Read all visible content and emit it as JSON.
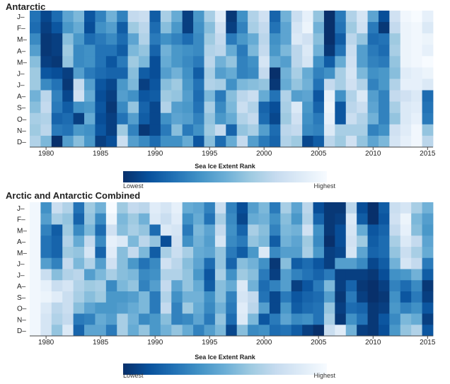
{
  "chart_data": [
    {
      "type": "heatmap",
      "title": "Antarctic",
      "row_labels": [
        "J",
        "F",
        "M",
        "A",
        "M",
        "J",
        "J",
        "A",
        "S",
        "O",
        "N",
        "D"
      ],
      "x_range": [
        1979,
        2015
      ],
      "x_tick_labels": [
        "1980",
        "1985",
        "1990",
        "1995",
        "2000",
        "2005",
        "2010",
        "2015"
      ],
      "x_ticks": [
        1980,
        1985,
        1990,
        1995,
        2000,
        2005,
        2010,
        2015
      ],
      "value_scale": "rank",
      "legend": {
        "title": "Sea Ice Extent Rank",
        "low_label": "Lowest",
        "high_label": "Highest",
        "low_color": "#08306b",
        "high_color": "#f7fbff"
      },
      "ranks": [
        [
          10,
          4,
          9,
          17,
          20,
          6,
          12,
          19,
          12,
          27,
          28,
          7,
          24,
          18,
          3,
          15,
          24,
          32,
          2,
          14,
          25,
          29,
          8,
          19,
          28,
          33,
          22,
          1,
          11,
          25,
          30,
          17,
          5,
          29,
          35,
          36,
          33
        ],
        [
          9,
          3,
          6,
          15,
          18,
          5,
          14,
          16,
          7,
          23,
          26,
          9,
          21,
          15,
          3,
          14,
          21,
          29,
          3,
          12,
          24,
          27,
          10,
          17,
          30,
          34,
          19,
          1,
          10,
          23,
          29,
          11,
          2,
          27,
          34,
          35,
          31
        ],
        [
          13,
          2,
          3,
          21,
          15,
          9,
          11,
          13,
          9,
          17,
          25,
          11,
          14,
          12,
          9,
          13,
          23,
          27,
          11,
          15,
          18,
          26,
          14,
          17,
          31,
          29,
          21,
          1,
          7,
          26,
          22,
          9,
          10,
          23,
          34,
          35,
          34
        ],
        [
          16,
          2,
          3,
          23,
          13,
          14,
          10,
          10,
          7,
          20,
          22,
          8,
          19,
          15,
          14,
          13,
          25,
          26,
          18,
          11,
          20,
          27,
          15,
          20,
          26,
          31,
          19,
          2,
          10,
          28,
          16,
          11,
          9,
          24,
          34,
          35,
          33
        ],
        [
          21,
          3,
          2,
          22,
          13,
          14,
          10,
          6,
          11,
          23,
          20,
          5,
          18,
          15,
          13,
          11,
          26,
          19,
          22,
          12,
          14,
          30,
          18,
          16,
          26,
          30,
          14,
          7,
          18,
          29,
          16,
          12,
          11,
          22,
          34,
          35,
          36
        ],
        [
          23,
          6,
          5,
          3,
          16,
          11,
          9,
          8,
          8,
          21,
          7,
          5,
          16,
          19,
          14,
          7,
          24,
          16,
          18,
          12,
          13,
          27,
          1,
          19,
          24,
          18,
          12,
          14,
          24,
          30,
          20,
          14,
          15,
          21,
          32,
          33,
          34
        ],
        [
          23,
          13,
          10,
          2,
          27,
          16,
          6,
          4,
          15,
          20,
          3,
          6,
          21,
          23,
          15,
          10,
          25,
          24,
          14,
          20,
          21,
          22,
          2,
          18,
          22,
          19,
          10,
          27,
          24,
          29,
          25,
          12,
          15,
          25,
          33,
          33,
          31
        ],
        [
          19,
          26,
          12,
          4,
          29,
          18,
          5,
          3,
          16,
          14,
          6,
          7,
          23,
          22,
          16,
          9,
          20,
          11,
          21,
          26,
          28,
          18,
          10,
          25,
          16,
          17,
          6,
          33,
          14,
          25,
          31,
          16,
          12,
          27,
          29,
          31,
          9
        ],
        [
          21,
          27,
          11,
          7,
          14,
          15,
          6,
          2,
          13,
          22,
          8,
          4,
          25,
          16,
          15,
          10,
          24,
          13,
          20,
          28,
          25,
          8,
          5,
          24,
          31,
          15,
          8,
          34,
          6,
          26,
          28,
          17,
          12,
          24,
          31,
          32,
          10
        ],
        [
          24,
          25,
          8,
          9,
          3,
          18,
          5,
          3,
          10,
          16,
          7,
          4,
          14,
          17,
          16,
          12,
          22,
          15,
          18,
          25,
          27,
          9,
          4,
          23,
          29,
          14,
          11,
          33,
          6,
          28,
          25,
          19,
          12,
          22,
          31,
          33,
          11
        ],
        [
          23,
          26,
          11,
          10,
          15,
          14,
          6,
          3,
          23,
          12,
          2,
          4,
          11,
          21,
          11,
          14,
          23,
          27,
          8,
          22,
          24,
          16,
          9,
          26,
          27,
          13,
          12,
          31,
          24,
          24,
          24,
          12,
          14,
          29,
          32,
          35,
          22
        ],
        [
          25,
          20,
          1,
          16,
          21,
          15,
          3,
          5,
          28,
          16,
          13,
          9,
          14,
          14,
          18,
          6,
          21,
          9,
          18,
          27,
          16,
          11,
          8,
          25,
          23,
          4,
          7,
          26,
          23,
          29,
          22,
          17,
          20,
          30,
          33,
          35,
          26
        ]
      ]
    },
    {
      "type": "heatmap",
      "title": "Arctic and Antarctic Combined",
      "row_labels": [
        "J",
        "F",
        "M",
        "A",
        "M",
        "J",
        "J",
        "A",
        "S",
        "O",
        "N",
        "D"
      ],
      "x_range": [
        1979,
        2015
      ],
      "x_tick_labels": [
        "1980",
        "1985",
        "1990",
        "1995",
        "2000",
        "2005",
        "2010",
        "2015"
      ],
      "x_ticks": [
        1980,
        1985,
        1990,
        1995,
        2000,
        2005,
        2010,
        2015
      ],
      "value_scale": "rank",
      "legend": {
        "title": "Sea Ice Extent Rank",
        "low_label": "Lowest",
        "high_label": "Highest",
        "low_color": "#08306b",
        "high_color": "#f7fbff"
      },
      "ranks": [
        [
          35,
          14,
          28,
          25,
          10,
          23,
          19,
          36,
          23,
          27,
          26,
          32,
          30,
          33,
          18,
          17,
          12,
          28,
          12,
          5,
          16,
          20,
          11,
          24,
          17,
          26,
          5,
          2,
          2,
          26,
          5,
          1,
          7,
          28,
          30,
          24,
          19
        ],
        [
          35,
          16,
          24,
          22,
          8,
          22,
          13,
          34,
          20,
          23,
          19,
          31,
          28,
          32,
          14,
          18,
          10,
          24,
          13,
          4,
          18,
          19,
          14,
          21,
          15,
          25,
          8,
          2,
          3,
          31,
          7,
          1,
          6,
          29,
          34,
          20,
          16
        ],
        [
          35,
          12,
          7,
          23,
          13,
          20,
          9,
          29,
          21,
          24,
          22,
          9,
          31,
          30,
          11,
          20,
          17,
          27,
          14,
          8,
          24,
          21,
          12,
          20,
          19,
          29,
          14,
          2,
          5,
          30,
          18,
          6,
          8,
          27,
          33,
          21,
          15
        ],
        [
          35,
          10,
          8,
          25,
          18,
          27,
          13,
          33,
          31,
          20,
          26,
          22,
          5,
          29,
          14,
          19,
          16,
          30,
          13,
          11,
          22,
          20,
          7,
          19,
          17,
          23,
          13,
          1,
          5,
          29,
          23,
          7,
          9,
          24,
          31,
          27,
          17
        ],
        [
          35,
          10,
          8,
          23,
          22,
          30,
          8,
          32,
          21,
          27,
          20,
          7,
          24,
          28,
          24,
          18,
          17,
          22,
          11,
          7,
          15,
          31,
          13,
          16,
          16,
          24,
          15,
          3,
          4,
          30,
          17,
          8,
          9,
          22,
          28,
          24,
          18
        ],
        [
          35,
          16,
          12,
          27,
          20,
          25,
          16,
          29,
          21,
          15,
          10,
          13,
          29,
          26,
          21,
          17,
          9,
          22,
          8,
          21,
          19,
          14,
          2,
          21,
          7,
          9,
          6,
          3,
          16,
          16,
          13,
          4,
          7,
          19,
          30,
          27,
          11
        ],
        [
          35,
          28,
          21,
          25,
          26,
          16,
          20,
          24,
          21,
          20,
          13,
          14,
          25,
          25,
          22,
          15,
          6,
          24,
          14,
          23,
          21,
          11,
          3,
          16,
          12,
          10,
          8,
          11,
          3,
          3,
          3,
          2,
          5,
          14,
          15,
          19,
          7
        ],
        [
          35,
          33,
          28,
          30,
          25,
          23,
          24,
          13,
          20,
          22,
          12,
          16,
          27,
          17,
          22,
          18,
          7,
          21,
          18,
          31,
          19,
          9,
          12,
          16,
          3,
          6,
          11,
          20,
          3,
          8,
          2,
          1,
          3,
          12,
          9,
          13,
          2
        ],
        [
          35,
          34,
          32,
          28,
          24,
          21,
          23,
          15,
          15,
          16,
          20,
          11,
          25,
          14,
          19,
          19,
          14,
          21,
          12,
          30,
          27,
          10,
          4,
          11,
          6,
          8,
          9,
          16,
          2,
          11,
          3,
          1,
          2,
          14,
          6,
          11,
          3
        ],
        [
          35,
          31,
          26,
          28,
          21,
          17,
          15,
          15,
          16,
          18,
          20,
          11,
          27,
          12,
          23,
          18,
          13,
          19,
          11,
          32,
          26,
          16,
          4,
          15,
          7,
          9,
          10,
          22,
          3,
          9,
          8,
          2,
          3,
          15,
          12,
          14,
          6
        ],
        [
          35,
          30,
          25,
          27,
          11,
          12,
          18,
          16,
          24,
          19,
          13,
          15,
          21,
          12,
          13,
          17,
          11,
          22,
          9,
          31,
          20,
          6,
          11,
          17,
          13,
          14,
          10,
          24,
          2,
          14,
          10,
          2,
          6,
          13,
          20,
          18,
          3
        ],
        [
          35,
          30,
          22,
          31,
          8,
          17,
          17,
          11,
          24,
          18,
          22,
          15,
          19,
          22,
          18,
          12,
          16,
          20,
          4,
          21,
          13,
          14,
          9,
          10,
          7,
          3,
          1,
          28,
          32,
          19,
          3,
          2,
          5,
          15,
          22,
          25,
          6
        ]
      ]
    }
  ]
}
